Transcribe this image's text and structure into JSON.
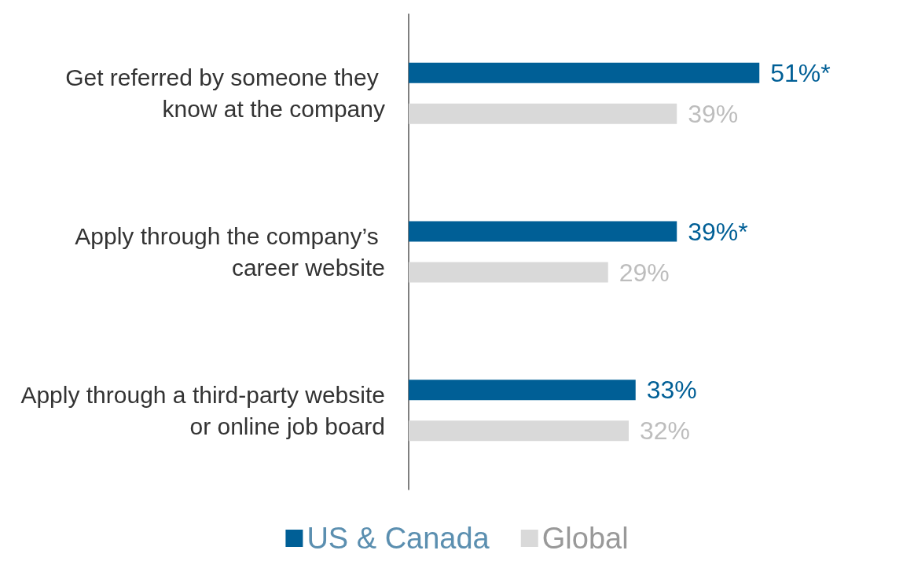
{
  "chart_data": {
    "type": "bar",
    "orientation": "horizontal",
    "categories": [
      "Get referred by someone they know at the company",
      "Apply through the company’s career website",
      "Apply through a third-party website or online job board"
    ],
    "series": [
      {
        "name": "US & Canada",
        "color": "#005f96",
        "values": [
          51,
          39,
          33
        ],
        "value_labels": [
          "51%*",
          "39%*",
          "33%"
        ]
      },
      {
        "name": "Global",
        "color": "#d9d9d9",
        "values": [
          39,
          29,
          32
        ],
        "value_labels": [
          "39%",
          "29%",
          "32%"
        ]
      }
    ],
    "legend": "bottom",
    "grid": false
  }
}
